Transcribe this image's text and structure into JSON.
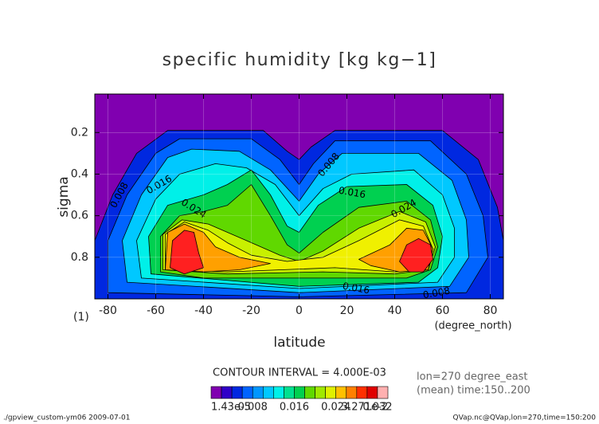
{
  "chart_data": {
    "type": "contour",
    "title": "specific humidity [kg kg−1]",
    "x_label": "latitude",
    "y_label": "sigma",
    "x_unit": "(degree_north)",
    "y_unit": "(1)",
    "xlim": [
      -85.5,
      85.5
    ],
    "ylim": [
      1.0,
      0.015
    ],
    "xticks": [
      -80,
      -60,
      -40,
      -20,
      0,
      20,
      40,
      60,
      80
    ],
    "yticks": [
      0.2,
      0.4,
      0.6,
      0.8
    ],
    "grid": true,
    "contour_interval_text": "CONTOUR INTERVAL = 4.000E-03",
    "notes": [
      "lon=270 degree_east",
      "(mean) time:150..200"
    ],
    "footer_left": "./gpview_custom-ym06  2009-07-01",
    "footer_right": "QVap.nc@QVap,lon=270,time=150:200",
    "contours": [
      {
        "level": 0.002,
        "color": "#0028e0",
        "path": [
          [
            -85.5,
            1.0
          ],
          [
            -85.5,
            0.72
          ],
          [
            -78,
            0.5
          ],
          [
            -68,
            0.3
          ],
          [
            -55,
            0.19
          ],
          [
            -15,
            0.19
          ],
          [
            -5,
            0.29
          ],
          [
            0,
            0.33
          ],
          [
            5,
            0.27
          ],
          [
            15,
            0.19
          ],
          [
            60,
            0.19
          ],
          [
            75,
            0.33
          ],
          [
            83,
            0.56
          ],
          [
            85.5,
            0.72
          ],
          [
            85.5,
            1.0
          ]
        ]
      },
      {
        "level": 0.004,
        "color": "#0064ff",
        "path": [
          [
            -80,
            0.97
          ],
          [
            -80,
            0.72
          ],
          [
            -72,
            0.5
          ],
          [
            -60,
            0.3
          ],
          [
            -50,
            0.23
          ],
          [
            -20,
            0.23
          ],
          [
            -8,
            0.33
          ],
          [
            0,
            0.45
          ],
          [
            6,
            0.35
          ],
          [
            15,
            0.24
          ],
          [
            55,
            0.24
          ],
          [
            70,
            0.4
          ],
          [
            77,
            0.6
          ],
          [
            79,
            0.8
          ],
          [
            70,
            0.97
          ],
          [
            0,
            0.99
          ]
        ]
      },
      {
        "level": 0.008,
        "color": "#00c8ff",
        "path": [
          [
            -72,
            0.92
          ],
          [
            -74,
            0.72
          ],
          [
            -66,
            0.5
          ],
          [
            -55,
            0.32
          ],
          [
            -45,
            0.28
          ],
          [
            -25,
            0.29
          ],
          [
            -12,
            0.38
          ],
          [
            0,
            0.53
          ],
          [
            8,
            0.4
          ],
          [
            18,
            0.3
          ],
          [
            50,
            0.3
          ],
          [
            64,
            0.43
          ],
          [
            70,
            0.62
          ],
          [
            71,
            0.8
          ],
          [
            63,
            0.94
          ],
          [
            0,
            0.97
          ]
        ]
      },
      {
        "level": 0.012,
        "color": "#00f0e8",
        "path": [
          [
            -66,
            0.9
          ],
          [
            -68,
            0.72
          ],
          [
            -60,
            0.52
          ],
          [
            -50,
            0.4
          ],
          [
            -35,
            0.35
          ],
          [
            -22,
            0.37
          ],
          [
            -10,
            0.45
          ],
          [
            0,
            0.6
          ],
          [
            10,
            0.47
          ],
          [
            22,
            0.4
          ],
          [
            48,
            0.38
          ],
          [
            60,
            0.5
          ],
          [
            65,
            0.66
          ],
          [
            65,
            0.8
          ],
          [
            58,
            0.92
          ],
          [
            0,
            0.95
          ]
        ]
      },
      {
        "level": 0.016,
        "color": "#00d050",
        "path": [
          [
            -62,
            0.88
          ],
          [
            -63,
            0.7
          ],
          [
            -55,
            0.55
          ],
          [
            -40,
            0.5
          ],
          [
            -30,
            0.45
          ],
          [
            -20,
            0.38
          ],
          [
            -12,
            0.5
          ],
          [
            -5,
            0.65
          ],
          [
            0,
            0.68
          ],
          [
            8,
            0.55
          ],
          [
            20,
            0.46
          ],
          [
            45,
            0.45
          ],
          [
            56,
            0.55
          ],
          [
            60,
            0.7
          ],
          [
            58,
            0.85
          ],
          [
            50,
            0.92
          ],
          [
            0,
            0.94
          ]
        ]
      },
      {
        "level": 0.02,
        "color": "#60d800",
        "path": [
          [
            -58,
            0.87
          ],
          [
            -58,
            0.7
          ],
          [
            -50,
            0.6
          ],
          [
            -40,
            0.58
          ],
          [
            -30,
            0.55
          ],
          [
            -20,
            0.45
          ],
          [
            -12,
            0.6
          ],
          [
            -5,
            0.74
          ],
          [
            0,
            0.78
          ],
          [
            10,
            0.68
          ],
          [
            25,
            0.56
          ],
          [
            45,
            0.53
          ],
          [
            55,
            0.62
          ],
          [
            58,
            0.75
          ],
          [
            55,
            0.86
          ],
          [
            45,
            0.9
          ],
          [
            0,
            0.9
          ],
          [
            -40,
            0.9
          ]
        ]
      },
      {
        "level": 0.022,
        "color": "#c8f000",
        "path": [
          [
            -57,
            0.86
          ],
          [
            -57,
            0.69
          ],
          [
            -49,
            0.62
          ],
          [
            -38,
            0.64
          ],
          [
            -30,
            0.68
          ],
          [
            -22,
            0.72
          ],
          [
            -8,
            0.79
          ],
          [
            0,
            0.82
          ],
          [
            10,
            0.77
          ],
          [
            25,
            0.66
          ],
          [
            42,
            0.58
          ],
          [
            53,
            0.63
          ],
          [
            57,
            0.75
          ],
          [
            54,
            0.86
          ],
          [
            40,
            0.88
          ],
          [
            10,
            0.87
          ],
          [
            -30,
            0.88
          ]
        ]
      },
      {
        "level": 0.024,
        "color": "#f0f000",
        "path": [
          [
            -56,
            0.86
          ],
          [
            -56,
            0.69
          ],
          [
            -48,
            0.63
          ],
          [
            -38,
            0.67
          ],
          [
            -30,
            0.73
          ],
          [
            -20,
            0.79
          ],
          [
            -5,
            0.82
          ],
          [
            10,
            0.8
          ],
          [
            25,
            0.72
          ],
          [
            42,
            0.62
          ],
          [
            52,
            0.65
          ],
          [
            56,
            0.76
          ],
          [
            54,
            0.86
          ],
          [
            40,
            0.87
          ],
          [
            15,
            0.85
          ],
          [
            -30,
            0.87
          ]
        ]
      },
      {
        "level": 0.028,
        "color": "#ffa000",
        "path": [
          [
            -56,
            0.86
          ],
          [
            -55,
            0.68
          ],
          [
            -48,
            0.64
          ],
          [
            -40,
            0.68
          ],
          [
            -35,
            0.75
          ],
          [
            -25,
            0.8
          ],
          [
            -12,
            0.83
          ],
          [
            -25,
            0.86
          ],
          [
            -40,
            0.87
          ]
        ]
      },
      {
        "level": 0.028,
        "color": "#ffa000",
        "path": [
          [
            25,
            0.81
          ],
          [
            38,
            0.74
          ],
          [
            45,
            0.66
          ],
          [
            52,
            0.67
          ],
          [
            56,
            0.76
          ],
          [
            54,
            0.86
          ],
          [
            42,
            0.87
          ],
          [
            30,
            0.84
          ]
        ]
      },
      {
        "level": 0.032,
        "color": "#ff2020",
        "path": [
          [
            -54,
            0.85
          ],
          [
            -53,
            0.72
          ],
          [
            -48,
            0.67
          ],
          [
            -44,
            0.68
          ],
          [
            -42,
            0.78
          ],
          [
            -40,
            0.85
          ],
          [
            -48,
            0.88
          ]
        ]
      },
      {
        "level": 0.032,
        "color": "#ff2020",
        "path": [
          [
            42,
            0.82
          ],
          [
            45,
            0.74
          ],
          [
            50,
            0.71
          ],
          [
            55,
            0.74
          ],
          [
            56,
            0.81
          ],
          [
            52,
            0.87
          ],
          [
            46,
            0.87
          ]
        ]
      }
    ],
    "contour_labels": [
      0.008,
      0.016,
      0.024,
      0.008,
      0.016,
      0.024,
      0.016,
      0.008
    ],
    "colorbar": {
      "bounds": [
        1.43e-05,
        0.002,
        0.004,
        0.006,
        0.008,
        0.01,
        0.012,
        0.014,
        0.016,
        0.018,
        0.02,
        0.022,
        0.024,
        0.026,
        0.028,
        0.03,
        0.032,
        0.03271
      ],
      "colors": [
        "#8000b0",
        "#3000c8",
        "#0028e0",
        "#0064ff",
        "#0096ff",
        "#00c8ff",
        "#00f0e8",
        "#00e090",
        "#00d050",
        "#60d800",
        "#a0e800",
        "#e0f000",
        "#ffc000",
        "#ff8000",
        "#ff3000",
        "#e00000",
        "#ffb0b0"
      ],
      "ticks": [
        {
          "value": 1.43e-05,
          "label": "1.43e-5"
        },
        0.008,
        0.016,
        0.024,
        0.032,
        {
          "value": 0.03271,
          "label": "3.271e-2"
        }
      ]
    }
  }
}
